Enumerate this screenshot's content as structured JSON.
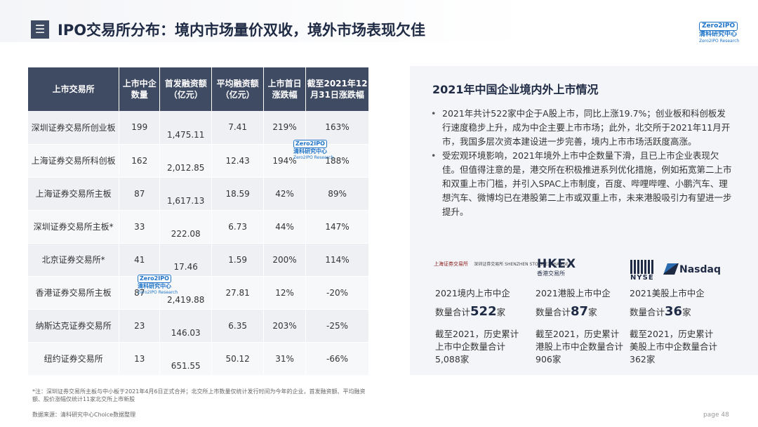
{
  "header": {
    "title": "IPO交易所分布：境内市场量价双收，境外市场表现欠佳",
    "menu_icon": "menu-icon",
    "logo": {
      "box": "Zero2IPO",
      "cn": "清科研究中心",
      "en": "Zero2IPO Research"
    }
  },
  "table": {
    "headers": [
      "上市交易所",
      "上市中企数量",
      "首发融资额（亿元）",
      "平均融资额（亿元）",
      "上市首日涨跌幅",
      "截至2021年12月31日涨跌幅"
    ],
    "rows": [
      {
        "exchange": "深圳证券交易所创业板",
        "count": "199",
        "raise": "1,475.11",
        "avg": "7.41",
        "first_day": "219%",
        "ytd": "163%"
      },
      {
        "exchange": "上海证券交易所科创板",
        "count": "162",
        "raise": "2,012.85",
        "avg": "12.43",
        "first_day": "194%",
        "ytd": "188%"
      },
      {
        "exchange": "上海证券交易所主板",
        "count": "87",
        "raise": "1,617.13",
        "avg": "18.59",
        "first_day": "42%",
        "ytd": "89%"
      },
      {
        "exchange": "深圳证券交易所主板*",
        "count": "33",
        "raise": "222.08",
        "avg": "6.73",
        "first_day": "44%",
        "ytd": "147%"
      },
      {
        "exchange": "北京证券交易所*",
        "count": "41",
        "raise": "17.46",
        "avg": "1.59",
        "first_day": "200%",
        "ytd": "114%"
      },
      {
        "exchange": "香港证券交易所主板",
        "count": "87",
        "raise": "2,419.88",
        "avg": "27.81",
        "first_day": "12%",
        "ytd": "-20%"
      },
      {
        "exchange": "纳斯达克证券交易所",
        "count": "23",
        "raise": "146.03",
        "avg": "6.35",
        "first_day": "203%",
        "ytd": "-25%"
      },
      {
        "exchange": "纽约证券交易所",
        "count": "13",
        "raise": "651.55",
        "avg": "50.12",
        "first_day": "31%",
        "ytd": "-66%"
      }
    ],
    "colors": {
      "positive": "#d2232a",
      "negative": "#1a9a5c",
      "header": "#3f4a63"
    }
  },
  "watermark": {
    "box": "Zero2IPO",
    "cn": "清科研究中心",
    "en": "Zero2IPO Research"
  },
  "footnote": "*注：深圳证券交易所主板与中小板于2021年4月6日正式合并；北交所上市数量仅统计发行时间为今年的企业，首发融资额、平均融资额、股价涨幅仅统计11家北交所上市新股",
  "source": "数据来源：清科研究中心Choice数据整理",
  "panel": {
    "title": "2021年中国企业境内外上市情况",
    "bullets": [
      "2021年共计522家中企于A股上市，同比上涨19.7%；创业板和科创板发行速度稳步上升，成为中企主要上市市场；此外，北交所于2021年11月开市，我国多层次资本建设进一步完善，境内上市市场活跃度高涨。",
      "受宏观环境影响，2021年境外上市中企数量下滑，且已上市企业表现欠佳。但值得注意的是，港交所在积极推进系列优化措施，例如拓宽第二上市和双重上市门槛，并引入SPAC上市制度，百度、哔哩哔哩、小鹏汽车、理想汽车、微博均已在港股第二上市或双重上市，未来港股吸引力有望进一步提升。"
    ],
    "logos": {
      "sse": "上海证券交易所",
      "szse": "深圳证券交易所 SHENZHEN STOCK EXCHANGE",
      "hkex": "HKEX",
      "hkex_sub": "香港交易所",
      "nyse": "NYSE",
      "nasdaq": "Nasdaq"
    },
    "stats": [
      {
        "label": "2021境内上市中企",
        "count_prefix": "数量合计",
        "count": "522",
        "count_suffix": "家",
        "hist": "截至2021，历史累计上市中企数量合计5,088家"
      },
      {
        "label": "2021港股上市中企",
        "count_prefix": "数量合计",
        "count": "87",
        "count_suffix": "家",
        "hist": "截至2021，历史累计港股上市中企数量合计906家"
      },
      {
        "label": "2021美股上市中企",
        "count_prefix": "数量合计",
        "count": "36",
        "count_suffix": "家",
        "hist": "截至2021，历史累计美股上市中企数量合计362家"
      }
    ]
  },
  "page": "page 48"
}
